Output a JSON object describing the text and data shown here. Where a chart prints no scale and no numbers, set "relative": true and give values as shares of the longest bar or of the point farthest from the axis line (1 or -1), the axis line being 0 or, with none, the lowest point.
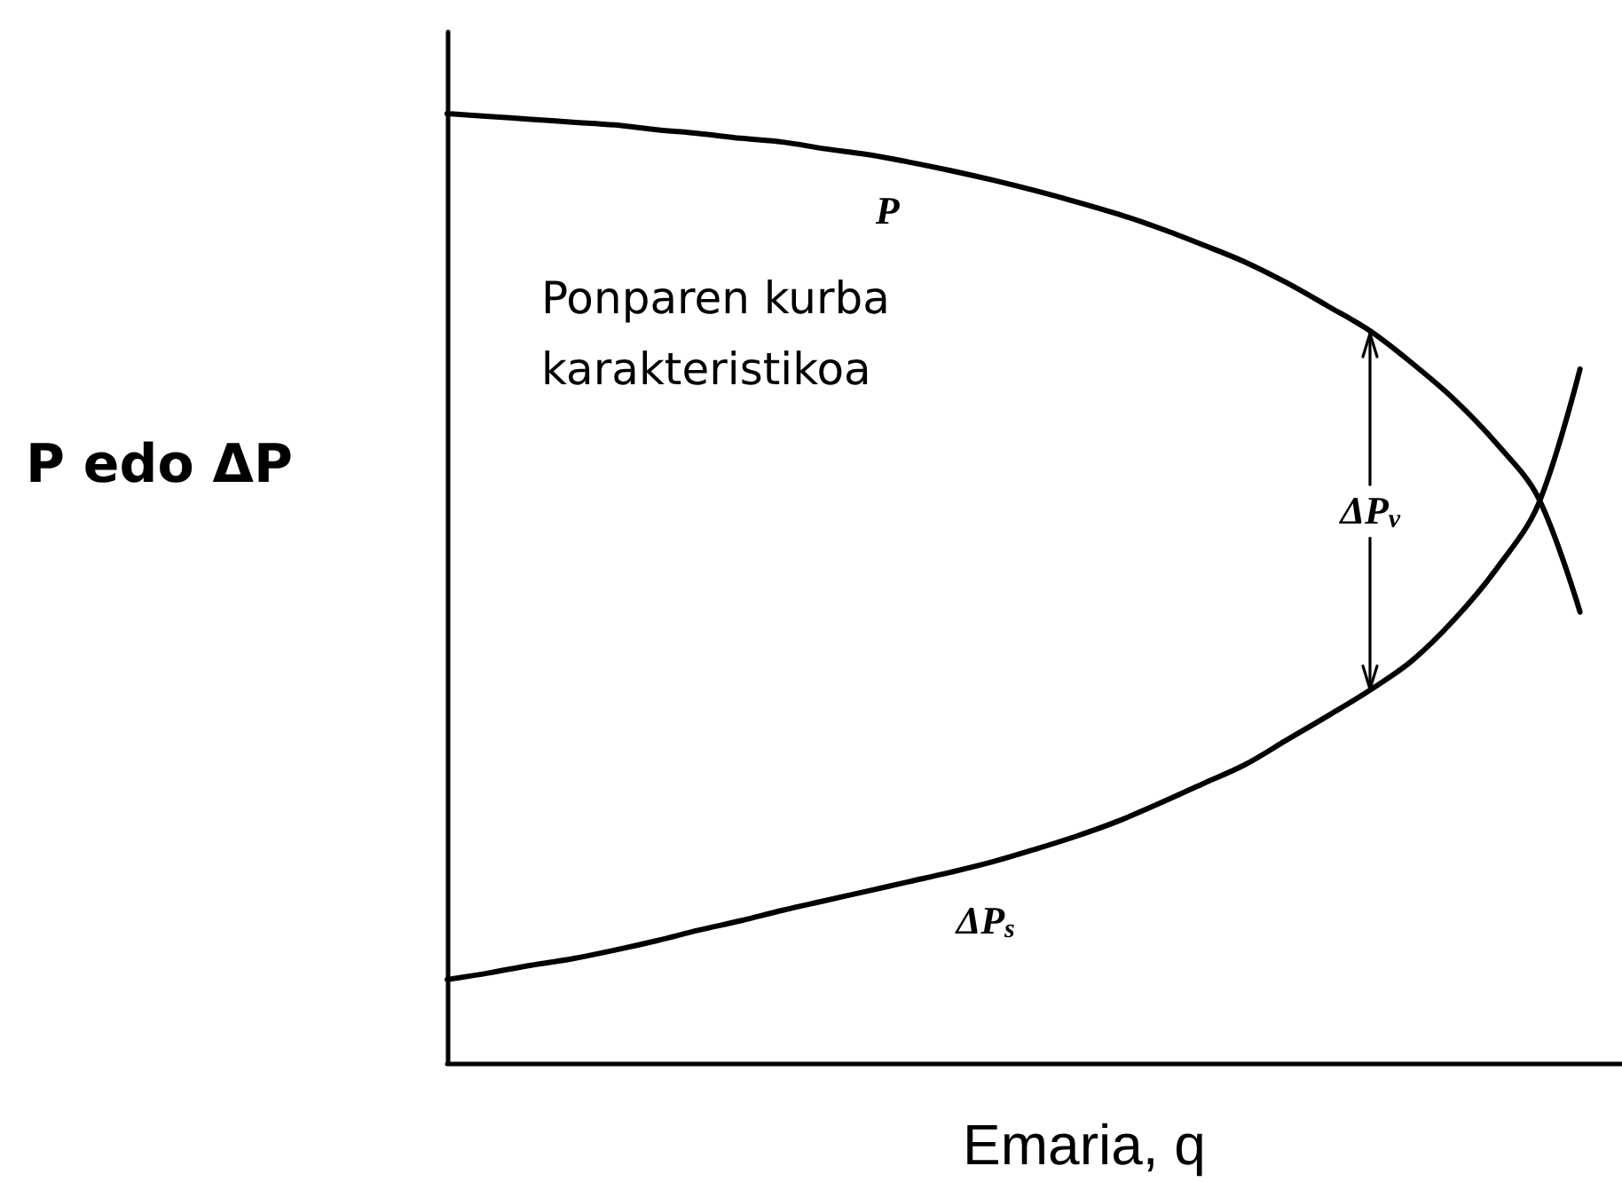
{
  "chart_data": {
    "type": "line",
    "relative": true,
    "xlabel": "Emaria, q",
    "ylabel": "P edo ΔP",
    "categories": [
      null,
      null,
      null,
      null,
      null,
      null,
      null,
      null,
      null,
      null,
      null,
      null,
      null,
      null,
      null,
      null,
      null,
      null,
      null,
      null,
      null,
      null,
      null,
      null,
      null,
      null,
      null,
      null,
      null
    ],
    "series": [
      {
        "name": "P",
        "color": "#000000",
        "values": [
          1,
          0.997,
          0.994,
          0.991,
          0.988,
          0.983,
          0.979,
          0.974,
          0.97,
          0.963,
          0.957,
          0.949,
          0.94,
          0.93,
          0.919,
          0.907,
          0.894,
          0.879,
          0.862,
          0.844,
          0.822,
          0.797,
          0.771,
          0.737,
          0.699,
          0.653,
          0.596,
          0.475,
          null
        ]
      },
      {
        "name": "ΔP$_{s}$",
        "color": "#000000",
        "values": [
          0.088,
          0.095,
          0.103,
          0.11,
          0.119,
          0.129,
          0.14,
          0.15,
          0.161,
          0.171,
          0.181,
          0.191,
          0.201,
          0.212,
          0.225,
          0.239,
          0.255,
          0.274,
          0.294,
          0.314,
          0.34,
          0.366,
          0.393,
          0.424,
          0.467,
          0.52,
          0.588,
          0.731,
          null
        ]
      }
    ],
    "annotations": [
      "Ponparen kurba karakteristikoa",
      "ΔP$_{v}$"
    ],
    "marker": "none",
    "line_style": "solid",
    "tick_labels": false
  }
}
